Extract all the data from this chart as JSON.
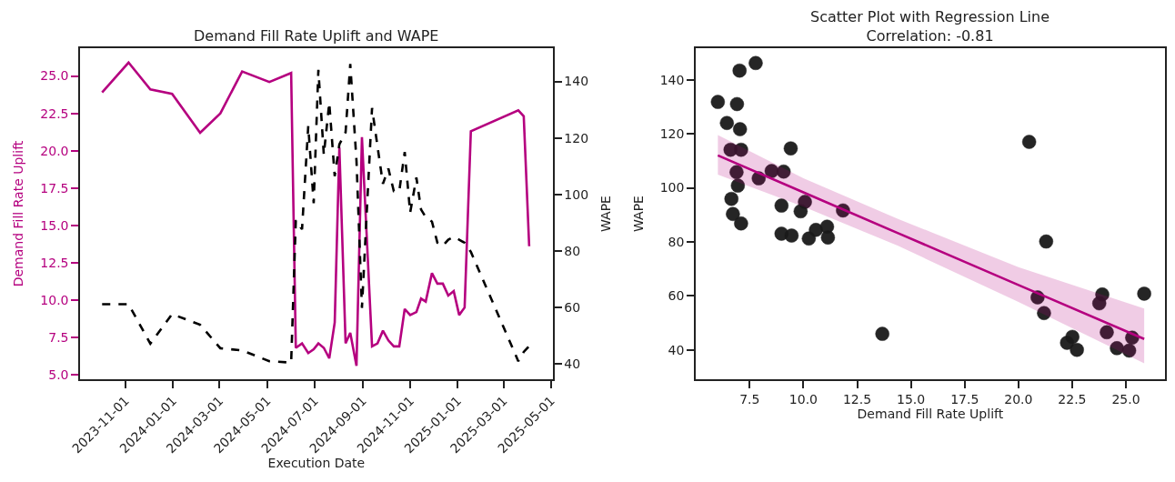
{
  "chart_data": [
    {
      "type": "line",
      "title": "Demand Fill Rate Uplift and WAPE",
      "xlabel": "Execution Date",
      "ylabel": "Demand Fill Rate Uplift",
      "y2label": "WAPE",
      "x": [
        "2023-10-02",
        "2023-11-05",
        "2023-12-03",
        "2023-12-31",
        "2024-02-05",
        "2024-03-02",
        "2024-03-30",
        "2024-05-04",
        "2024-06-01",
        "2024-06-07",
        "2024-06-15",
        "2024-06-23",
        "2024-06-30",
        "2024-07-06",
        "2024-07-13",
        "2024-07-20",
        "2024-07-27",
        "2024-08-02",
        "2024-08-10",
        "2024-08-16",
        "2024-08-24",
        "2024-08-31",
        "2024-09-13",
        "2024-09-20",
        "2024-09-27",
        "2024-10-04",
        "2024-10-11",
        "2024-10-18",
        "2024-10-25",
        "2024-11-01",
        "2024-11-09",
        "2024-11-15",
        "2024-11-21",
        "2024-11-29",
        "2024-12-06",
        "2024-12-13",
        "2024-12-20",
        "2024-12-27",
        "2025-01-03",
        "2025-01-10",
        "2025-01-18",
        "2025-03-20",
        "2025-03-27",
        "2025-04-03"
      ],
      "series": [
        {
          "color": "#b5007f",
          "values": [
            23.9,
            25.9,
            24.1,
            23.8,
            21.2,
            22.5,
            25.3,
            24.6,
            25.2,
            6.8,
            7.1,
            6.45,
            6.7,
            7.1,
            6.8,
            6.1,
            8.5,
            20.2,
            7.1,
            7.8,
            5.6,
            20.9,
            6.9,
            7.1,
            7.95,
            7.3,
            6.9,
            6.9,
            9.4,
            9.0,
            9.2,
            10.1,
            9.9,
            11.8,
            11.1,
            11.1,
            10.3,
            10.6,
            9.0,
            9.5,
            21.3,
            22.7,
            22.3,
            13.6
          ]
        },
        {
          "color": "#000000",
          "axis": "y2",
          "line_style": "dashed",
          "values": [
            61.0,
            61.0,
            47.0,
            57.5,
            53.7,
            45.4,
            44.6,
            40.8,
            40.3,
            90.8,
            87.6,
            124.2,
            96.8,
            144.1,
            114.0,
            132.5,
            106.4,
            117.7,
            122.0,
            146.2,
            111.8,
            59.7,
            130.6,
            117.0,
            103.7,
            109.1,
            101.1,
            101.1,
            115.0,
            93.5,
            105.9,
            94.6,
            91.9,
            90.3,
            82.8,
            81.7,
            83.9,
            84.9,
            83.9,
            82.8,
            79.6,
            40.8,
            44.1,
            46.2
          ]
        }
      ],
      "xlim": [
        "2023-09-04",
        "2025-05-03"
      ],
      "xticks": [
        {
          "value": "2023-11-01",
          "label": "2023-11-01"
        },
        {
          "value": "2024-01-01",
          "label": "2024-01-01"
        },
        {
          "value": "2024-03-01",
          "label": "2024-03-01"
        },
        {
          "value": "2024-05-01",
          "label": "2024-05-01"
        },
        {
          "value": "2024-07-01",
          "label": "2024-07-01"
        },
        {
          "value": "2024-09-01",
          "label": "2024-09-01"
        },
        {
          "value": "2024-11-01",
          "label": "2024-11-01"
        },
        {
          "value": "2025-01-01",
          "label": "2025-01-01"
        },
        {
          "value": "2025-03-01",
          "label": "2025-03-01"
        },
        {
          "value": "2025-05-01",
          "label": "2025-05-01"
        }
      ],
      "ylim": [
        4.7,
        26.86
      ],
      "yticks": [
        {
          "value": 5,
          "label": "5.0"
        },
        {
          "value": 7.5,
          "label": "7.5"
        },
        {
          "value": 10,
          "label": "10.0"
        },
        {
          "value": 12.5,
          "label": "12.5"
        },
        {
          "value": 15,
          "label": "15.0"
        },
        {
          "value": 17.5,
          "label": "17.5"
        },
        {
          "value": 20,
          "label": "20.0"
        },
        {
          "value": 22.5,
          "label": "22.5"
        },
        {
          "value": 25,
          "label": "25.0"
        }
      ],
      "y2lim": [
        34.4,
        151.8
      ],
      "y2ticks": [
        40,
        60,
        80,
        100,
        120,
        140
      ],
      "marker": "none"
    },
    {
      "type": "scatter",
      "title": "Scatter Plot with Regression Line\nCorrelation: -0.81",
      "xlabel": "Demand Fill Rate Uplift",
      "ylabel": "WAPE",
      "series": [
        {
          "color": "#1a1a1a",
          "marker": "circle",
          "x": [
            6.02,
            7.03,
            7.78,
            6.44,
            6.91,
            7.05,
            6.61,
            7.1,
            6.89,
            6.95,
            6.65,
            6.72,
            7.1,
            7.92,
            8.52,
            9.08,
            9.41,
            8.98,
            8.98,
            9.45,
            10.07,
            9.87,
            10.25,
            10.58,
            11.1,
            11.14,
            11.84,
            13.67,
            20.5,
            21.29,
            20.89,
            21.19,
            23.9,
            23.76,
            25.85,
            22.26,
            22.51,
            22.72,
            24.11,
            24.58,
            25.15,
            25.29
          ],
          "values": [
            131.8,
            143.4,
            146.2,
            124.0,
            131.0,
            121.7,
            114.1,
            114.1,
            105.8,
            100.8,
            95.9,
            90.3,
            86.8,
            103.5,
            106.2,
            106.0,
            114.6,
            93.4,
            83.0,
            82.3,
            94.8,
            91.3,
            81.2,
            84.4,
            85.6,
            81.6,
            91.6,
            45.9,
            117.0,
            80.1,
            59.4,
            53.6,
            60.5,
            57.2,
            60.8,
            42.6,
            44.8,
            40.0,
            46.5,
            40.6,
            39.7,
            44.5
          ]
        },
        {
          "type": "line",
          "marker": "none",
          "color": "#b5007f",
          "x": [
            6.02,
            10.0,
            14.4,
            20.0,
            25.85
          ],
          "values": [
            112.0,
            98.3,
            83.2,
            64.0,
            44.0
          ],
          "lower": [
            104.9,
            93.0,
            78.5,
            57.7,
            35.0
          ],
          "upper": [
            119.5,
            103.5,
            88.5,
            70.6,
            55.3
          ]
        }
      ],
      "xlim": [
        5.0,
        26.8
      ],
      "xticks": [
        {
          "value": 7.5,
          "label": "7.5"
        },
        {
          "value": 10,
          "label": "10.0"
        },
        {
          "value": 12.5,
          "label": "12.5"
        },
        {
          "value": 15,
          "label": "15.0"
        },
        {
          "value": 17.5,
          "label": "17.5"
        },
        {
          "value": 20,
          "label": "20.0"
        },
        {
          "value": 22.5,
          "label": "22.5"
        },
        {
          "value": 25,
          "label": "25.0"
        }
      ],
      "ylim": [
        29.1,
        151.7
      ],
      "yticks": [
        40,
        60,
        80,
        100,
        120,
        140
      ]
    }
  ]
}
